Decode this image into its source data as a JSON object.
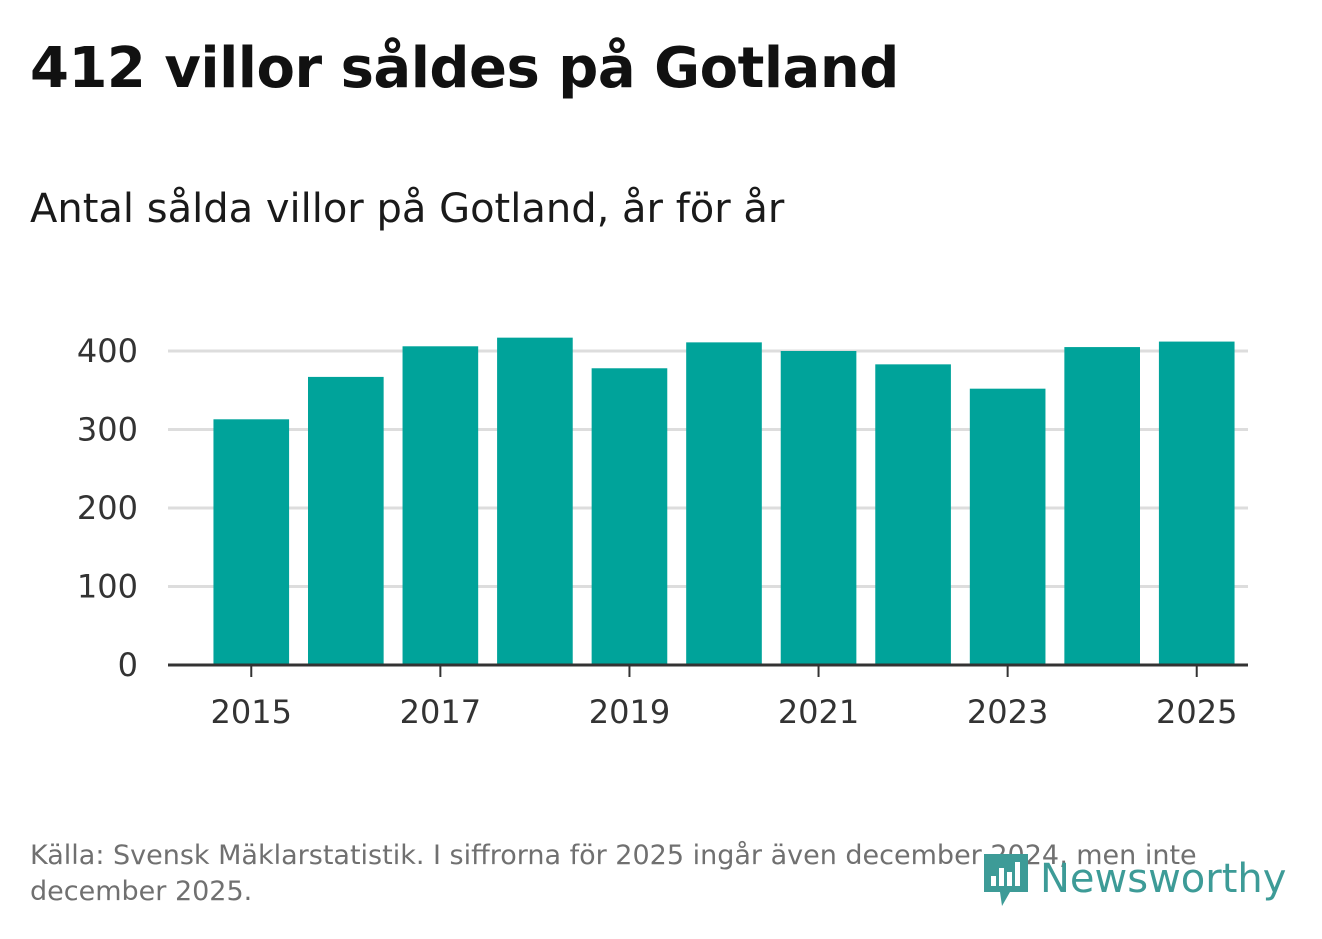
{
  "title": "412 villor såldes på Gotland",
  "subtitle": "Antal sålda villor på Gotland, år för år",
  "source": "Källa: Svensk Mäklarstatistik. I siffrorna för 2025 ingår även december 2024, men inte december 2025.",
  "logo": {
    "text": "Newsworthy",
    "icon": "newsworthy-logo-icon"
  },
  "colors": {
    "bar": "#00a39a",
    "grid": "#dddddd",
    "axis": "#333333",
    "logo": "#3d9b97"
  },
  "chart_data": {
    "type": "bar",
    "title": "Antal sålda villor på Gotland, år för år",
    "xlabel": "",
    "ylabel": "",
    "categories": [
      2015,
      2016,
      2017,
      2018,
      2019,
      2020,
      2021,
      2022,
      2023,
      2024,
      2025
    ],
    "values": [
      313,
      367,
      406,
      417,
      378,
      411,
      400,
      383,
      352,
      405,
      412
    ],
    "ylim": [
      0,
      430
    ],
    "yticks": [
      0,
      100,
      200,
      300,
      400
    ],
    "xticks": [
      2015,
      2017,
      2019,
      2021,
      2023,
      2025
    ],
    "grid": true
  }
}
